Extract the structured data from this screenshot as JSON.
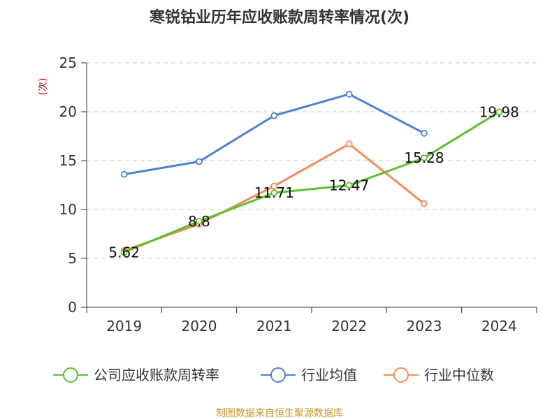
{
  "chart_data": {
    "type": "line",
    "title": "寒锐钴业历年应收账款周转率情况(次)",
    "ylabel": "(次)",
    "xlabel": "",
    "categories": [
      "2019",
      "2020",
      "2021",
      "2022",
      "2023",
      "2024"
    ],
    "ylim": [
      0,
      25
    ],
    "yticks": [
      0,
      5,
      10,
      15,
      20,
      25
    ],
    "grid": true,
    "series": [
      {
        "name": "公司应收账款周转率",
        "color": "#5cc12d",
        "values": [
          5.62,
          8.8,
          11.71,
          12.47,
          15.28,
          19.98
        ],
        "labels": [
          "5.62",
          "8.8",
          "11.71",
          "12.47",
          "15.28",
          "19.98"
        ]
      },
      {
        "name": "行业均值",
        "color": "#4e7fd6",
        "values": [
          13.6,
          14.9,
          19.6,
          21.8,
          17.8,
          null
        ]
      },
      {
        "name": "行业中位数",
        "color": "#f28d5a",
        "values": [
          5.8,
          8.5,
          12.4,
          16.7,
          10.6,
          null
        ]
      }
    ],
    "legend_position": "bottom",
    "source": "制图数据来自恒生聚源数据库"
  }
}
